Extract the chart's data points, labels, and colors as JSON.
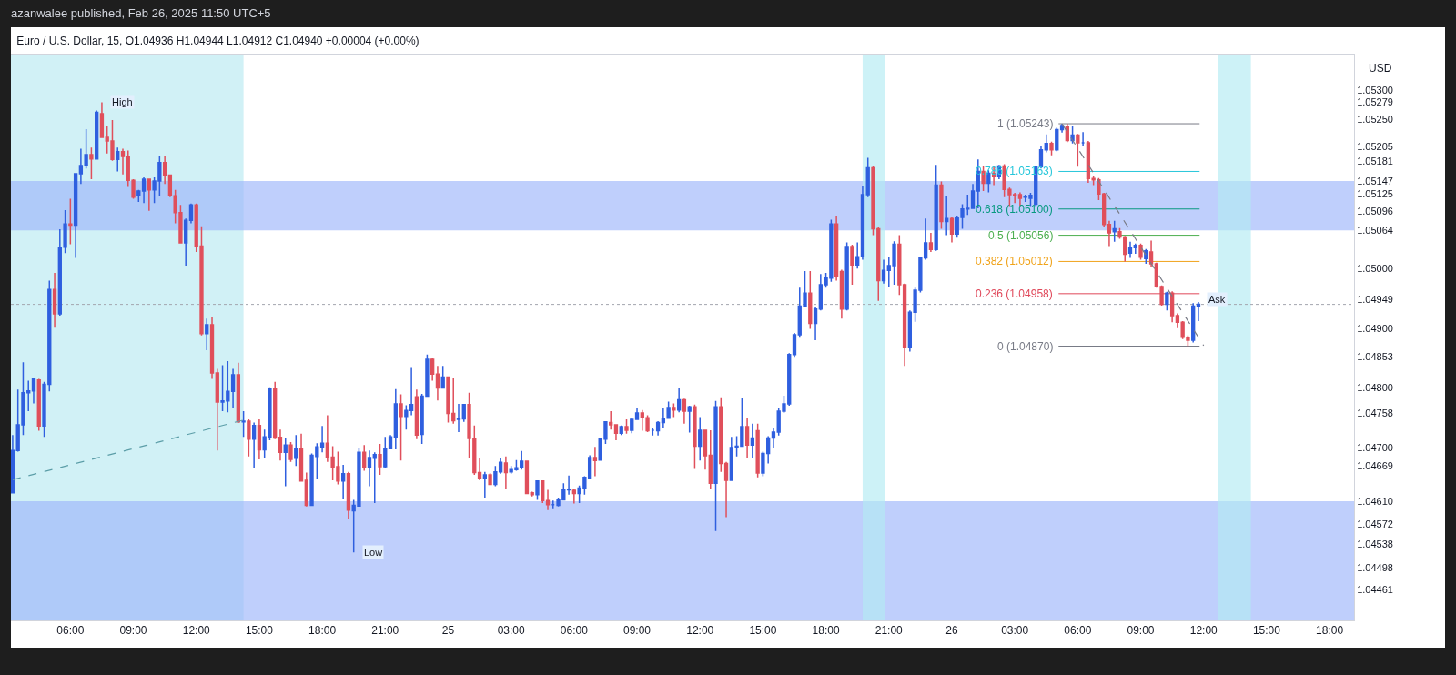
{
  "chart_data": {
    "type": "candlestick",
    "title": "Euro / U.S. Dollar, 15, O1.04936 H1.04944 L1.04912 C1.04940 +0.00004 (+0.00%)",
    "subtitle": "azanwalee published, Feb 26, 2025 11:50 UTC+5",
    "ylabel": "USD",
    "colors": [
      "#2f5fdf",
      "#2f5fdf",
      "#2f5fdf",
      "#2f5fdf",
      "#2f5fdf",
      "#e04f5b",
      "#2f5fdf",
      "#2f5fdf",
      "#e04f5b",
      "#2f5fdf",
      "#2f5fdf",
      "#e04f5b",
      "#2f5fdf",
      "#2f5fdf",
      "#2f5fdf",
      "#e04f5b",
      "#2f5fdf",
      "#e04f5b",
      "#e04f5b",
      "#e04f5b",
      "#2f5fdf",
      "#e04f5b",
      "#e04f5b",
      "#e04f5b",
      "#2f5fdf",
      "#2f5fdf",
      "#e04f5b",
      "#2f5fdf",
      "#2f5fdf",
      "#e04f5b",
      "#e04f5b",
      "#e04f5b",
      "#e04f5b",
      "#2f5fdf",
      "#2f5fdf",
      "#e04f5b",
      "#e04f5b",
      "#2f5fdf",
      "#e04f5b",
      "#e04f5b",
      "#2f5fdf",
      "#2f5fdf",
      "#2f5fdf",
      "#e04f5b",
      "#2f5fdf",
      "#e04f5b",
      "#2f5fdf",
      "#e04f5b",
      "#2f5fdf",
      "#2f5fdf",
      "#e04f5b",
      "#e04f5b",
      "#2f5fdf",
      "#e04f5b",
      "#2f5fdf",
      "#e04f5b",
      "#e04f5b",
      "#2f5fdf",
      "#2f5fdf",
      "#2f5fdf",
      "#e04f5b",
      "#e04f5b",
      "#e04f5b",
      "#2f5fdf",
      "#e04f5b",
      "#2f5fdf",
      "#2f5fdf",
      "#e04f5b",
      "#2f5fdf",
      "#2f5fdf",
      "#e04f5b",
      "#2f5fdf",
      "#2f5fdf",
      "#2f5fdf",
      "#e04f5b",
      "#2f5fdf",
      "#2f5fdf",
      "#e04f5b",
      "#2f5fdf",
      "#2f5fdf",
      "#e04f5b",
      "#e04f5b",
      "#2f5fdf",
      "#e04f5b",
      "#e04f5b",
      "#2f5fdf",
      "#2f5fdf",
      "#e04f5b",
      "#e04f5b",
      "#e04f5b",
      "#2f5fdf",
      "#e04f5b",
      "#2f5fdf",
      "#2f5fdf",
      "#e04f5b",
      "#2f5fdf",
      "#2f5fdf",
      "#2f5fdf",
      "#e04f5b",
      "#e04f5b",
      "#2f5fdf",
      "#e04f5b",
      "#e04f5b",
      "#2f5fdf",
      "#2f5fdf",
      "#2f5fdf",
      "#2f5fdf",
      "#e04f5b",
      "#2f5fdf",
      "#2f5fdf",
      "#2f5fdf",
      "#e04f5b",
      "#2f5fdf",
      "#2f5fdf",
      "#e04f5b",
      "#e04f5b",
      "#2f5fdf",
      "#e04f5b",
      "#2f5fdf",
      "#2f5fdf",
      "#e04f5b",
      "#e04f5b",
      "#2f5fdf",
      "#2f5fdf",
      "#2f5fdf",
      "#2f5fdf",
      "#e04f5b",
      "#2f5fdf",
      "#e04f5b",
      "#2f5fdf",
      "#e04f5b",
      "#2f5fdf",
      "#e04f5b",
      "#e04f5b",
      "#2f5fdf",
      "#e04f5b",
      "#e04f5b",
      "#2f5fdf",
      "#2f5fdf",
      "#2f5fdf",
      "#e04f5b",
      "#2f5fdf",
      "#e04f5b",
      "#2f5fdf",
      "#2f5fdf",
      "#2f5fdf",
      "#2f5fdf",
      "#2f5fdf",
      "#2f5fdf",
      "#2f5fdf",
      "#2f5fdf",
      "#2f5fdf",
      "#e04f5b",
      "#2f5fdf",
      "#2f5fdf",
      "#2f5fdf",
      "#2f5fdf",
      "#e04f5b",
      "#e04f5b",
      "#2f5fdf",
      "#e04f5b",
      "#2f5fdf",
      "#2f5fdf",
      "#2f5fdf",
      "#e04f5b",
      "#e04f5b",
      "#2f5fdf",
      "#2f5fdf",
      "#2f5fdf",
      "#e04f5b",
      "#e04f5b",
      "#2f5fdf",
      "#2f5fdf",
      "#2f5fdf",
      "#2f5fdf",
      "#e04f5b",
      "#2f5fdf",
      "#e04f5b",
      "#2f5fdf",
      "#e04f5b",
      "#2f5fdf",
      "#2f5fdf",
      "#2f5fdf",
      "#2f5fdf",
      "#2f5fdf",
      "#e04f5b",
      "#2f5fdf",
      "#e04f5b",
      "#2f5fdf",
      "#e04f5b",
      "#e04f5b",
      "#e04f5b",
      "#e04f5b",
      "#2f5fdf",
      "#2f5fdf",
      "#2f5fdf",
      "#2f5fdf",
      "#2f5fdf",
      "#e04f5b",
      "#2f5fdf",
      "#2f5fdf",
      "#e04f5b",
      "#2f5fdf",
      "#e04f5b",
      "#2f5fdf",
      "#e04f5b",
      "#e04f5b",
      "#e04f5b",
      "#e04f5b",
      "#e04f5b",
      "#2f5fdf",
      "#e04f5b",
      "#e04f5b",
      "#2f5fdf",
      "#2f5fdf",
      "#e04f5b",
      "#2f5fdf",
      "#e04f5b",
      "#e04f5b",
      "#e04f5b",
      "#2f5fdf",
      "#e04f5b",
      "#e04f5b",
      "#e04f5b",
      "#e04f5b",
      "#2f5fdf",
      "#2f5fdf"
    ],
    "x": [
      "2025-02-24T03:15",
      "2025-02-24T03:30",
      "2025-02-24T03:45",
      "2025-02-24T04:00",
      "2025-02-24T04:15",
      "2025-02-24T04:30",
      "2025-02-24T04:45",
      "2025-02-24T05:00",
      "2025-02-24T05:15",
      "2025-02-24T05:30",
      "2025-02-24T05:45",
      "2025-02-24T06:00",
      "2025-02-24T06:15",
      "2025-02-24T06:30",
      "2025-02-24T06:45",
      "2025-02-24T07:00",
      "2025-02-24T07:15",
      "2025-02-24T07:30",
      "2025-02-24T07:45",
      "2025-02-24T08:00",
      "2025-02-24T08:15",
      "2025-02-24T08:30",
      "2025-02-24T08:45",
      "2025-02-24T09:00",
      "2025-02-24T09:15",
      "2025-02-24T09:30",
      "2025-02-24T09:45",
      "2025-02-24T10:00",
      "2025-02-24T10:15",
      "2025-02-24T10:30",
      "2025-02-24T10:45",
      "2025-02-24T11:00",
      "2025-02-24T11:15",
      "2025-02-24T11:30",
      "2025-02-24T11:45",
      "2025-02-24T12:00",
      "2025-02-24T12:15",
      "2025-02-24T12:30",
      "2025-02-24T12:45",
      "2025-02-24T13:00",
      "2025-02-24T13:15",
      "2025-02-24T13:30",
      "2025-02-24T13:45",
      "2025-02-24T14:00",
      "2025-02-24T14:15",
      "2025-02-24T14:30",
      "2025-02-24T14:45",
      "2025-02-24T15:00",
      "2025-02-24T15:15",
      "2025-02-24T15:30",
      "2025-02-24T15:45",
      "2025-02-24T16:00",
      "2025-02-24T16:15",
      "2025-02-24T16:30",
      "2025-02-24T16:45",
      "2025-02-24T17:00",
      "2025-02-24T17:15",
      "2025-02-24T17:30",
      "2025-02-24T17:45",
      "2025-02-24T18:00",
      "2025-02-24T18:15",
      "2025-02-24T18:30",
      "2025-02-24T18:45",
      "2025-02-24T19:00",
      "2025-02-24T19:15",
      "2025-02-24T19:30",
      "2025-02-24T19:45",
      "2025-02-24T20:00",
      "2025-02-24T20:15",
      "2025-02-24T20:30",
      "2025-02-24T20:45",
      "2025-02-24T21:00",
      "2025-02-24T21:15",
      "2025-02-24T21:30",
      "2025-02-24T21:45",
      "2025-02-24T22:00",
      "2025-02-24T22:15",
      "2025-02-24T22:30",
      "2025-02-24T22:45",
      "2025-02-24T23:00",
      "2025-02-24T23:15",
      "2025-02-24T23:30",
      "2025-02-24T23:45",
      "2025-02-25T00:00",
      "2025-02-25T00:15",
      "2025-02-25T00:30",
      "2025-02-25T00:45",
      "2025-02-25T01:00",
      "2025-02-25T01:15",
      "2025-02-25T01:30",
      "2025-02-25T01:45",
      "2025-02-25T02:00",
      "2025-02-25T02:15",
      "2025-02-25T02:30",
      "2025-02-25T02:45",
      "2025-02-25T03:00",
      "2025-02-25T03:15",
      "2025-02-25T03:30",
      "2025-02-25T03:45",
      "2025-02-25T04:00",
      "2025-02-25T04:15",
      "2025-02-25T04:30",
      "2025-02-25T04:45",
      "2025-02-25T05:00",
      "2025-02-25T05:15",
      "2025-02-25T05:30",
      "2025-02-25T05:45",
      "2025-02-25T06:00",
      "2025-02-25T06:15",
      "2025-02-25T06:30",
      "2025-02-25T06:45",
      "2025-02-25T07:00",
      "2025-02-25T07:15",
      "2025-02-25T07:30",
      "2025-02-25T07:45",
      "2025-02-25T08:00",
      "2025-02-25T08:15",
      "2025-02-25T08:30",
      "2025-02-25T08:45",
      "2025-02-25T09:00",
      "2025-02-25T09:15",
      "2025-02-25T09:30",
      "2025-02-25T09:45",
      "2025-02-25T10:00",
      "2025-02-25T10:15",
      "2025-02-25T10:30",
      "2025-02-25T10:45",
      "2025-02-25T11:00",
      "2025-02-25T11:15",
      "2025-02-25T11:30",
      "2025-02-25T11:45",
      "2025-02-25T12:00",
      "2025-02-25T12:15",
      "2025-02-25T12:30",
      "2025-02-25T12:45",
      "2025-02-25T13:00",
      "2025-02-25T13:15",
      "2025-02-25T13:30",
      "2025-02-25T13:45",
      "2025-02-25T14:00",
      "2025-02-25T14:15",
      "2025-02-25T14:30",
      "2025-02-25T14:45",
      "2025-02-25T15:00",
      "2025-02-25T15:15",
      "2025-02-25T15:30",
      "2025-02-25T15:45",
      "2025-02-25T16:00",
      "2025-02-25T16:15",
      "2025-02-25T16:30",
      "2025-02-25T16:45",
      "2025-02-25T17:00",
      "2025-02-25T17:15",
      "2025-02-25T17:30",
      "2025-02-25T17:45",
      "2025-02-25T18:00",
      "2025-02-25T18:15",
      "2025-02-25T18:30",
      "2025-02-25T18:45",
      "2025-02-25T19:00",
      "2025-02-25T19:15",
      "2025-02-25T19:30",
      "2025-02-25T19:45",
      "2025-02-25T20:00",
      "2025-02-25T20:15",
      "2025-02-25T20:30",
      "2025-02-25T20:45",
      "2025-02-25T21:00",
      "2025-02-25T21:15",
      "2025-02-25T21:30",
      "2025-02-25T21:45",
      "2025-02-25T22:00",
      "2025-02-25T22:15",
      "2025-02-25T22:30",
      "2025-02-25T22:45",
      "2025-02-25T23:00",
      "2025-02-25T23:15",
      "2025-02-25T23:30",
      "2025-02-25T23:45",
      "2025-02-26T00:00",
      "2025-02-26T00:15",
      "2025-02-26T00:30",
      "2025-02-26T00:45",
      "2025-02-26T01:00",
      "2025-02-26T01:15",
      "2025-02-26T01:30",
      "2025-02-26T01:45",
      "2025-02-26T02:00",
      "2025-02-26T02:15",
      "2025-02-26T02:30",
      "2025-02-26T02:45",
      "2025-02-26T03:00",
      "2025-02-26T03:15",
      "2025-02-26T03:30",
      "2025-02-26T03:45",
      "2025-02-26T04:00",
      "2025-02-26T04:15",
      "2025-02-26T04:30",
      "2025-02-26T04:45",
      "2025-02-26T05:00",
      "2025-02-26T05:15",
      "2025-02-26T05:30",
      "2025-02-26T05:45",
      "2025-02-26T06:00",
      "2025-02-26T06:15",
      "2025-02-26T06:30",
      "2025-02-26T06:45",
      "2025-02-26T07:00",
      "2025-02-26T07:15",
      "2025-02-26T07:30",
      "2025-02-26T07:45",
      "2025-02-26T08:00",
      "2025-02-26T08:15",
      "2025-02-26T08:30",
      "2025-02-26T08:45",
      "2025-02-26T09:00",
      "2025-02-26T09:15",
      "2025-02-26T09:30",
      "2025-02-26T09:45",
      "2025-02-26T10:00",
      "2025-02-26T10:15",
      "2025-02-26T10:30",
      "2025-02-26T10:45",
      "2025-02-26T11:00",
      "2025-02-26T11:15",
      "2025-02-26T11:30",
      "2025-02-26T11:45"
    ],
    "ohlc": [
      [
        1.04624,
        1.04721,
        1.04624,
        1.04695
      ],
      [
        1.04695,
        1.04797,
        1.04693,
        1.04738
      ],
      [
        1.04738,
        1.04843,
        1.04721,
        1.04792
      ],
      [
        1.04792,
        1.04812,
        1.04761,
        1.04795
      ],
      [
        1.04795,
        1.04817,
        1.04774,
        1.04815
      ],
      [
        1.04813,
        1.04815,
        1.04728,
        1.04736
      ],
      [
        1.04736,
        1.0481,
        1.04718,
        1.04806
      ],
      [
        1.04806,
        1.0498,
        1.04794,
        1.04965
      ],
      [
        1.04965,
        1.04993,
        1.04901,
        1.04924
      ],
      [
        1.04924,
        1.05066,
        1.04921,
        1.05036
      ],
      [
        1.05036,
        1.05098,
        1.05026,
        1.05075
      ],
      [
        1.05075,
        1.05117,
        1.05041,
        1.05073
      ],
      [
        1.05073,
        1.0516,
        1.05018,
        1.05159
      ],
      [
        1.05159,
        1.05201,
        1.05142,
        1.05173
      ],
      [
        1.05173,
        1.05234,
        1.05168,
        1.05191
      ],
      [
        1.05191,
        1.05203,
        1.0515,
        1.05184
      ],
      [
        1.05184,
        1.05265,
        1.05183,
        1.05262
      ],
      [
        1.0526,
        1.05279,
        1.05219,
        1.0522
      ],
      [
        1.0522,
        1.05239,
        1.05193,
        1.05214
      ],
      [
        1.05214,
        1.05249,
        1.05181,
        1.05183
      ],
      [
        1.05183,
        1.05203,
        1.05163,
        1.05196
      ],
      [
        1.05196,
        1.05201,
        1.05158,
        1.05188
      ],
      [
        1.05188,
        1.05198,
        1.05137,
        1.05148
      ],
      [
        1.05148,
        1.0515,
        1.05117,
        1.0512
      ],
      [
        1.05122,
        1.05132,
        1.05112,
        1.0513
      ],
      [
        1.0513,
        1.05153,
        1.0511,
        1.0515
      ],
      [
        1.0515,
        1.0515,
        1.05097,
        1.05132
      ],
      [
        1.05132,
        1.05153,
        1.0511,
        1.05147
      ],
      [
        1.05147,
        1.05188,
        1.05122,
        1.05178
      ],
      [
        1.05178,
        1.05188,
        1.05142,
        1.05157
      ],
      [
        1.05157,
        1.05158,
        1.0512,
        1.05122
      ],
      [
        1.05122,
        1.05132,
        1.05076,
        1.05094
      ],
      [
        1.05094,
        1.05107,
        1.05043,
        1.05043
      ],
      [
        1.05043,
        1.05084,
        1.05005,
        1.05081
      ],
      [
        1.05081,
        1.05109,
        1.05076,
        1.05107
      ],
      [
        1.05107,
        1.05109,
        1.05028,
        1.05038
      ],
      [
        1.05038,
        1.05071,
        1.04888,
        1.04891
      ],
      [
        1.04891,
        1.04916,
        1.04863,
        1.04906
      ],
      [
        1.04906,
        1.04919,
        1.04815,
        1.04825
      ],
      [
        1.04825,
        1.04832,
        1.04695,
        1.04776
      ],
      [
        1.04776,
        1.04838,
        1.04761,
        1.04778
      ],
      [
        1.04778,
        1.04845,
        1.04759,
        1.04794
      ],
      [
        1.04794,
        1.04832,
        1.04766,
        1.04822
      ],
      [
        1.04822,
        1.04842,
        1.04741,
        1.04743
      ],
      [
        1.04743,
        1.04761,
        1.04718,
        1.04744
      ],
      [
        1.04744,
        1.04747,
        1.04685,
        1.04714
      ],
      [
        1.04714,
        1.04742,
        1.04666,
        1.04737
      ],
      [
        1.04737,
        1.04747,
        1.0468,
        1.04696
      ],
      [
        1.04696,
        1.0473,
        1.04683,
        1.04718
      ],
      [
        1.04717,
        1.04801,
        1.04712,
        1.04799
      ],
      [
        1.04798,
        1.0481,
        1.04714,
        1.04716
      ],
      [
        1.04717,
        1.0473,
        1.04678,
        1.04692
      ],
      [
        1.04692,
        1.04716,
        1.04635,
        1.04704
      ],
      [
        1.04704,
        1.04709,
        1.04676,
        1.0468
      ],
      [
        1.04682,
        1.04721,
        1.04669,
        1.04698
      ],
      [
        1.04698,
        1.04723,
        1.04644,
        1.04644
      ],
      [
        1.04645,
        1.04658,
        1.04601,
        1.04603
      ],
      [
        1.04603,
        1.0469,
        1.04603,
        1.04687
      ],
      [
        1.04685,
        1.04707,
        1.04647,
        1.04701
      ],
      [
        1.04701,
        1.04736,
        1.04692,
        1.04707
      ],
      [
        1.04707,
        1.04754,
        1.04676,
        1.04683
      ],
      [
        1.04684,
        1.04702,
        1.04645,
        1.04666
      ],
      [
        1.04668,
        1.04693,
        1.04638,
        1.04644
      ],
      [
        1.04644,
        1.04671,
        1.04614,
        1.04656
      ],
      [
        1.04656,
        1.04659,
        1.04581,
        1.04595
      ],
      [
        1.04594,
        1.04612,
        1.04524,
        1.04603
      ],
      [
        1.04602,
        1.04699,
        1.04601,
        1.04692
      ],
      [
        1.04692,
        1.04704,
        1.04661,
        1.04666
      ],
      [
        1.04666,
        1.04695,
        1.04635,
        1.04683
      ],
      [
        1.04682,
        1.04692,
        1.04607,
        1.04688
      ],
      [
        1.04688,
        1.04706,
        1.04654,
        1.04668
      ],
      [
        1.04668,
        1.04718,
        1.04665,
        1.04698
      ],
      [
        1.04698,
        1.04721,
        1.04697,
        1.04718
      ],
      [
        1.04718,
        1.04798,
        1.04697,
        1.04773
      ],
      [
        1.04773,
        1.04789,
        1.04678,
        1.04752
      ],
      [
        1.04752,
        1.04771,
        1.0473,
        1.04762
      ],
      [
        1.04762,
        1.04835,
        1.04754,
        1.04772
      ],
      [
        1.04785,
        1.04797,
        1.04714,
        1.04721
      ],
      [
        1.04722,
        1.0479,
        1.04706,
        1.04786
      ],
      [
        1.04786,
        1.04856,
        1.04785,
        1.04848
      ],
      [
        1.04848,
        1.04851,
        1.04812,
        1.04823
      ],
      [
        1.04823,
        1.04837,
        1.04779,
        1.048
      ],
      [
        1.048,
        1.04837,
        1.04799,
        1.04818
      ],
      [
        1.04818,
        1.04818,
        1.04742,
        1.04757
      ],
      [
        1.04757,
        1.04817,
        1.0474,
        1.04745
      ],
      [
        1.04747,
        1.04773,
        1.04726,
        1.04748
      ],
      [
        1.04748,
        1.04773,
        1.04743,
        1.04772
      ],
      [
        1.04772,
        1.04792,
        1.04683,
        1.04715
      ],
      [
        1.04715,
        1.04737,
        1.04654,
        1.04658
      ],
      [
        1.04658,
        1.04683,
        1.04645,
        1.04649
      ],
      [
        1.04649,
        1.04659,
        1.04616,
        1.04654
      ],
      [
        1.04654,
        1.04657,
        1.04637,
        1.04638
      ],
      [
        1.04638,
        1.04669,
        1.04635,
        1.04659
      ],
      [
        1.04659,
        1.04682,
        1.04656,
        1.04675
      ],
      [
        1.04674,
        1.04685,
        1.0463,
        1.04658
      ],
      [
        1.04659,
        1.04669,
        1.04656,
        1.04663
      ],
      [
        1.04663,
        1.04679,
        1.04661,
        1.04666
      ],
      [
        1.04666,
        1.04694,
        1.04663,
        1.04677
      ],
      [
        1.04677,
        1.04678,
        1.04622,
        1.04623
      ],
      [
        1.04624,
        1.04626,
        1.04618,
        1.04621
      ],
      [
        1.04621,
        1.04645,
        1.04612,
        1.04644
      ],
      [
        1.04644,
        1.04645,
        1.04607,
        1.04611
      ],
      [
        1.04611,
        1.04629,
        1.04595,
        1.04604
      ],
      [
        1.04604,
        1.04611,
        1.04598,
        1.04604
      ],
      [
        1.04603,
        1.04616,
        1.04601,
        1.04612
      ],
      [
        1.04612,
        1.0464,
        1.04611,
        1.04629
      ],
      [
        1.04629,
        1.04653,
        1.04621,
        1.0463
      ],
      [
        1.04628,
        1.0463,
        1.04606,
        1.04623
      ],
      [
        1.04623,
        1.04636,
        1.04607,
        1.04632
      ],
      [
        1.04632,
        1.04652,
        1.04621,
        1.0465
      ],
      [
        1.04649,
        1.04687,
        1.04648,
        1.04683
      ],
      [
        1.04683,
        1.04701,
        1.04652,
        1.04678
      ],
      [
        1.04679,
        1.04716,
        1.04678,
        1.04715
      ],
      [
        1.04714,
        1.04744,
        1.04706,
        1.04743
      ],
      [
        1.04742,
        1.04761,
        1.0473,
        1.04738
      ],
      [
        1.04738,
        1.04739,
        1.04712,
        1.04724
      ],
      [
        1.04724,
        1.04737,
        1.04721,
        1.04735
      ],
      [
        1.04735,
        1.04747,
        1.04723,
        1.04729
      ],
      [
        1.04729,
        1.0475,
        1.04724,
        1.04747
      ],
      [
        1.04747,
        1.04767,
        1.04746,
        1.04758
      ],
      [
        1.04758,
        1.04763,
        1.04728,
        1.0475
      ],
      [
        1.0475,
        1.04754,
        1.04726,
        1.04728
      ],
      [
        1.04729,
        1.04732,
        1.0472,
        1.04729
      ],
      [
        1.04728,
        1.04744,
        1.0472,
        1.04742
      ],
      [
        1.04742,
        1.04767,
        1.04732,
        1.04749
      ],
      [
        1.04749,
        1.04777,
        1.04748,
        1.04767
      ],
      [
        1.04767,
        1.04774,
        1.04751,
        1.04763
      ],
      [
        1.04763,
        1.04799,
        1.04759,
        1.0478
      ],
      [
        1.0478,
        1.04782,
        1.0474,
        1.04761
      ],
      [
        1.04761,
        1.0477,
        1.04725,
        1.04768
      ],
      [
        1.04768,
        1.04772,
        1.04664,
        1.04702
      ],
      [
        1.04702,
        1.04751,
        1.04678,
        1.04729
      ],
      [
        1.04729,
        1.0473,
        1.04663,
        1.04686
      ],
      [
        1.04687,
        1.04729,
        1.0463,
        1.0464
      ],
      [
        1.0464,
        1.04778,
        1.0456,
        1.04768
      ],
      [
        1.04768,
        1.04784,
        1.04659,
        1.04673
      ],
      [
        1.04673,
        1.04676,
        1.04583,
        1.04645
      ],
      [
        1.04645,
        1.04718,
        1.04645,
        1.047
      ],
      [
        1.047,
        1.04719,
        1.04685,
        1.04702
      ],
      [
        1.04702,
        1.04783,
        1.04702,
        1.04735
      ],
      [
        1.04735,
        1.0475,
        1.04683,
        1.04704
      ],
      [
        1.04704,
        1.0474,
        1.04683,
        1.04716
      ],
      [
        1.04728,
        1.0474,
        1.0465,
        1.04657
      ],
      [
        1.04657,
        1.04693,
        1.04652,
        1.0469
      ],
      [
        1.0469,
        1.04719,
        1.04673,
        1.04716
      ],
      [
        1.04716,
        1.04733,
        1.047,
        1.04726
      ],
      [
        1.04726,
        1.04766,
        1.0472,
        1.04761
      ],
      [
        1.04761,
        1.04787,
        1.04758,
        1.04773
      ],
      [
        1.04773,
        1.04858,
        1.0477,
        1.04856
      ],
      [
        1.04856,
        1.04892,
        1.04852,
        1.04889
      ],
      [
        1.04889,
        1.04968,
        1.04884,
        1.04937
      ],
      [
        1.04937,
        1.04996,
        1.04935,
        1.04959
      ],
      [
        1.04959,
        1.04996,
        1.04899,
        1.04908
      ],
      [
        1.04908,
        1.04936,
        1.0488,
        1.04932
      ],
      [
        1.04932,
        1.04991,
        1.0493,
        1.04973
      ],
      [
        1.04973,
        1.04993,
        1.04968,
        1.04984
      ],
      [
        1.04984,
        1.05082,
        1.04978,
        1.05075
      ],
      [
        1.05075,
        1.05089,
        1.0498,
        1.04987
      ],
      [
        1.04995,
        1.04998,
        1.04916,
        1.04932
      ],
      [
        1.04932,
        1.05044,
        1.0493,
        1.05037
      ],
      [
        1.05037,
        1.0504,
        1.04973,
        1.05006
      ],
      [
        1.05006,
        1.05044,
        1.05,
        1.0502
      ],
      [
        1.0502,
        1.05139,
        1.05015,
        1.05124
      ],
      [
        1.05124,
        1.05186,
        1.0512,
        1.05169
      ],
      [
        1.05169,
        1.05172,
        1.05056,
        1.05067
      ],
      [
        1.05067,
        1.0507,
        1.04946,
        1.0498
      ],
      [
        1.0498,
        1.05015,
        1.04975,
        1.04997
      ],
      [
        1.04997,
        1.0502,
        1.0497,
        1.05005
      ],
      [
        1.05005,
        1.05046,
        1.04973,
        1.05041
      ],
      [
        1.05041,
        1.05056,
        1.04956,
        1.04973
      ],
      [
        1.04973,
        1.04975,
        1.04837,
        1.04868
      ],
      [
        1.04868,
        1.0493,
        1.04861,
        1.04927
      ],
      [
        1.04927,
        1.04968,
        1.04911,
        1.04964
      ],
      [
        1.04964,
        1.0502,
        1.0496,
        1.05018
      ],
      [
        1.05018,
        1.05084,
        1.05015,
        1.05043
      ],
      [
        1.05043,
        1.0506,
        1.05028,
        1.05032
      ],
      [
        1.05032,
        1.05174,
        1.0503,
        1.0514
      ],
      [
        1.0514,
        1.05146,
        1.05067,
        1.05079
      ],
      [
        1.05079,
        1.05122,
        1.05056,
        1.05084
      ],
      [
        1.05084,
        1.05086,
        1.05044,
        1.05058
      ],
      [
        1.05058,
        1.05089,
        1.05052,
        1.05086
      ],
      [
        1.05086,
        1.05108,
        1.05067,
        1.051
      ],
      [
        1.051,
        1.05124,
        1.0509,
        1.05101
      ],
      [
        1.05101,
        1.05142,
        1.051,
        1.0513
      ],
      [
        1.0513,
        1.05183,
        1.05101,
        1.05163
      ],
      [
        1.05163,
        1.05172,
        1.0513,
        1.05143
      ],
      [
        1.05143,
        1.05165,
        1.05128,
        1.0516
      ],
      [
        1.0516,
        1.05172,
        1.0514,
        1.05154
      ],
      [
        1.05154,
        1.05174,
        1.0515,
        1.05172
      ],
      [
        1.05172,
        1.05175,
        1.0512,
        1.05133
      ],
      [
        1.05133,
        1.05136,
        1.05105,
        1.05124
      ],
      [
        1.05124,
        1.05127,
        1.0511,
        1.05122
      ],
      [
        1.05124,
        1.05128,
        1.05105,
        1.05118
      ],
      [
        1.0512,
        1.05124,
        1.05112,
        1.05121
      ],
      [
        1.05118,
        1.05127,
        1.05105,
        1.05123
      ],
      [
        1.05108,
        1.05173,
        1.05105,
        1.05171
      ],
      [
        1.05171,
        1.05205,
        1.05168,
        1.05199
      ],
      [
        1.05199,
        1.05225,
        1.05195,
        1.0521
      ],
      [
        1.0521,
        1.05213,
        1.0519,
        1.05199
      ],
      [
        1.05199,
        1.05236,
        1.05197,
        1.05233
      ],
      [
        1.05233,
        1.05243,
        1.05228,
        1.0524
      ],
      [
        1.05238,
        1.05243,
        1.05212,
        1.05215
      ],
      [
        1.05215,
        1.0524,
        1.0521,
        1.05224
      ],
      [
        1.05224,
        1.05226,
        1.05171,
        1.05211
      ],
      [
        1.05211,
        1.05229,
        1.05205,
        1.05211
      ],
      [
        1.05211,
        1.05214,
        1.05144,
        1.05151
      ],
      [
        1.05151,
        1.05156,
        1.0514,
        1.05149
      ],
      [
        1.05149,
        1.05152,
        1.05115,
        1.05125
      ],
      [
        1.05125,
        1.05127,
        1.0507,
        1.05074
      ],
      [
        1.05074,
        1.0508,
        1.05038,
        1.0506
      ],
      [
        1.05062,
        1.0508,
        1.05045,
        1.05067
      ],
      [
        1.05062,
        1.05068,
        1.0505,
        1.05053
      ],
      [
        1.05053,
        1.05055,
        1.05012,
        1.05024
      ],
      [
        1.05026,
        1.05045,
        1.05018,
        1.05035
      ],
      [
        1.05035,
        1.05042,
        1.05025,
        1.05039
      ],
      [
        1.05039,
        1.05042,
        1.05015,
        1.05019
      ],
      [
        1.05017,
        1.05033,
        1.05008,
        1.0503
      ],
      [
        1.05028,
        1.05047,
        1.05003,
        1.05008
      ],
      [
        1.05008,
        1.0501,
        1.04968,
        1.0497
      ],
      [
        1.0497,
        1.04972,
        1.04938,
        1.0494
      ],
      [
        1.0494,
        1.04961,
        1.0493,
        1.04959
      ],
      [
        1.04959,
        1.04962,
        1.0491,
        1.04921
      ],
      [
        1.04921,
        1.04925,
        1.049,
        1.0491
      ],
      [
        1.0491,
        1.04912,
        1.04882,
        1.04885
      ],
      [
        1.04885,
        1.04888,
        1.0487,
        1.0488
      ],
      [
        1.0488,
        1.04942,
        1.04876,
        1.04937
      ],
      [
        1.04936,
        1.04944,
        1.04912,
        1.0494
      ]
    ],
    "series": [
      {
        "type": "line",
        "x": [
          "2025-02-24T03:15",
          "2025-02-24T14:15"
        ],
        "values": [
          1.04646,
          1.04746
        ],
        "color": "#5c9ea8",
        "line_style": "dashed"
      },
      {
        "type": "line",
        "x": [
          "2025-02-26T05:15",
          "2025-02-26T12:00"
        ],
        "values": [
          1.05243,
          1.04871
        ],
        "color": "#787b86",
        "line_style": "dashed"
      }
    ],
    "xlim": [
      "2025-02-24T03:10",
      "2025-02-26T19:10"
    ],
    "xticks": [
      {
        "value": "2025-02-24T06:00",
        "label": "06:00"
      },
      {
        "value": "2025-02-24T09:00",
        "label": "09:00"
      },
      {
        "value": "2025-02-24T12:00",
        "label": "12:00"
      },
      {
        "value": "2025-02-24T15:00",
        "label": "15:00"
      },
      {
        "value": "2025-02-24T18:00",
        "label": "18:00"
      },
      {
        "value": "2025-02-24T21:00",
        "label": "21:00"
      },
      {
        "value": "2025-02-25T00:00",
        "label": "25"
      },
      {
        "value": "2025-02-25T03:00",
        "label": "03:00"
      },
      {
        "value": "2025-02-25T06:00",
        "label": "06:00"
      },
      {
        "value": "2025-02-25T09:00",
        "label": "09:00"
      },
      {
        "value": "2025-02-25T12:00",
        "label": "12:00"
      },
      {
        "value": "2025-02-25T15:00",
        "label": "15:00"
      },
      {
        "value": "2025-02-25T18:00",
        "label": "18:00"
      },
      {
        "value": "2025-02-25T21:00",
        "label": "21:00"
      },
      {
        "value": "2025-02-26T00:00",
        "label": "26"
      },
      {
        "value": "2025-02-26T03:00",
        "label": "03:00"
      },
      {
        "value": "2025-02-26T06:00",
        "label": "06:00"
      },
      {
        "value": "2025-02-26T09:00",
        "label": "09:00"
      },
      {
        "value": "2025-02-26T12:00",
        "label": "12:00"
      },
      {
        "value": "2025-02-26T15:00",
        "label": "15:00"
      },
      {
        "value": "2025-02-26T18:00",
        "label": "18:00"
      }
    ],
    "ylim": [
      1.0441,
      1.05359
    ],
    "yticks": [
      {
        "value": 1.053,
        "label": "1.05300"
      },
      1.05279,
      {
        "value": 1.0525,
        "label": "1.05250"
      },
      1.05205,
      1.05181,
      1.05147,
      1.05125,
      1.05096,
      1.05064,
      {
        "value": 1.05,
        "label": "1.05000"
      },
      1.04949,
      {
        "value": 1.049,
        "label": "1.04900"
      },
      1.04853,
      {
        "value": 1.048,
        "label": "1.04800"
      },
      1.04758,
      {
        "value": 1.047,
        "label": "1.04700"
      },
      1.04669,
      {
        "value": 1.0461,
        "label": "1.04610"
      },
      1.04572,
      1.04538,
      1.04498,
      1.04461
    ],
    "bands": [
      {
        "axis": "x",
        "from": "2025-02-24T03:10",
        "to": "2025-02-24T14:15",
        "color": "#b9e9f1"
      },
      {
        "axis": "y",
        "from": 1.0441,
        "to": 1.0461,
        "color": "#9db5fa"
      },
      {
        "axis": "y",
        "from": 1.05064,
        "to": 1.05147,
        "color": "#9db5fa"
      },
      {
        "axis": "x",
        "from": "2025-02-25T19:45",
        "to": "2025-02-25T20:50",
        "color": "#b2ebf2"
      },
      {
        "axis": "x",
        "from": "2025-02-26T12:40",
        "to": "2025-02-26T14:15",
        "color": "#b2ebf2"
      }
    ],
    "ref_lines": [
      {
        "axis": "y",
        "value": 1.05243,
        "label": "1 (1.05243)",
        "color": "#787b86"
      },
      {
        "axis": "y",
        "value": 1.05163,
        "label": "0.786 (1.05163)",
        "color": "#26c6da"
      },
      {
        "axis": "y",
        "value": 1.051,
        "label": "0.618 (1.05100)",
        "color": "#089981"
      },
      {
        "axis": "y",
        "value": 1.05056,
        "label": "0.5 (1.05056)",
        "color": "#4caf50"
      },
      {
        "axis": "y",
        "value": 1.05012,
        "label": "0.382 (1.05012)",
        "color": "#f0a31a"
      },
      {
        "axis": "y",
        "value": 1.04958,
        "label": "0.236 (1.04958)",
        "color": "#e0485a"
      },
      {
        "axis": "y",
        "value": 1.0487,
        "label": "0 (1.04870)",
        "color": "#787b86"
      },
      {
        "axis": "y",
        "value": 1.0494,
        "color": "#a3a6af",
        "line_style": "dotted"
      }
    ],
    "annotations": [
      {
        "text": "High",
        "x": "2025-02-24T07:30",
        "y": 1.05279
      },
      {
        "text": "Low",
        "x": "2025-02-24T19:30",
        "y": 1.04524
      },
      {
        "text": "Ask",
        "x": "2025-02-26T11:45",
        "y": 1.04949
      }
    ]
  }
}
